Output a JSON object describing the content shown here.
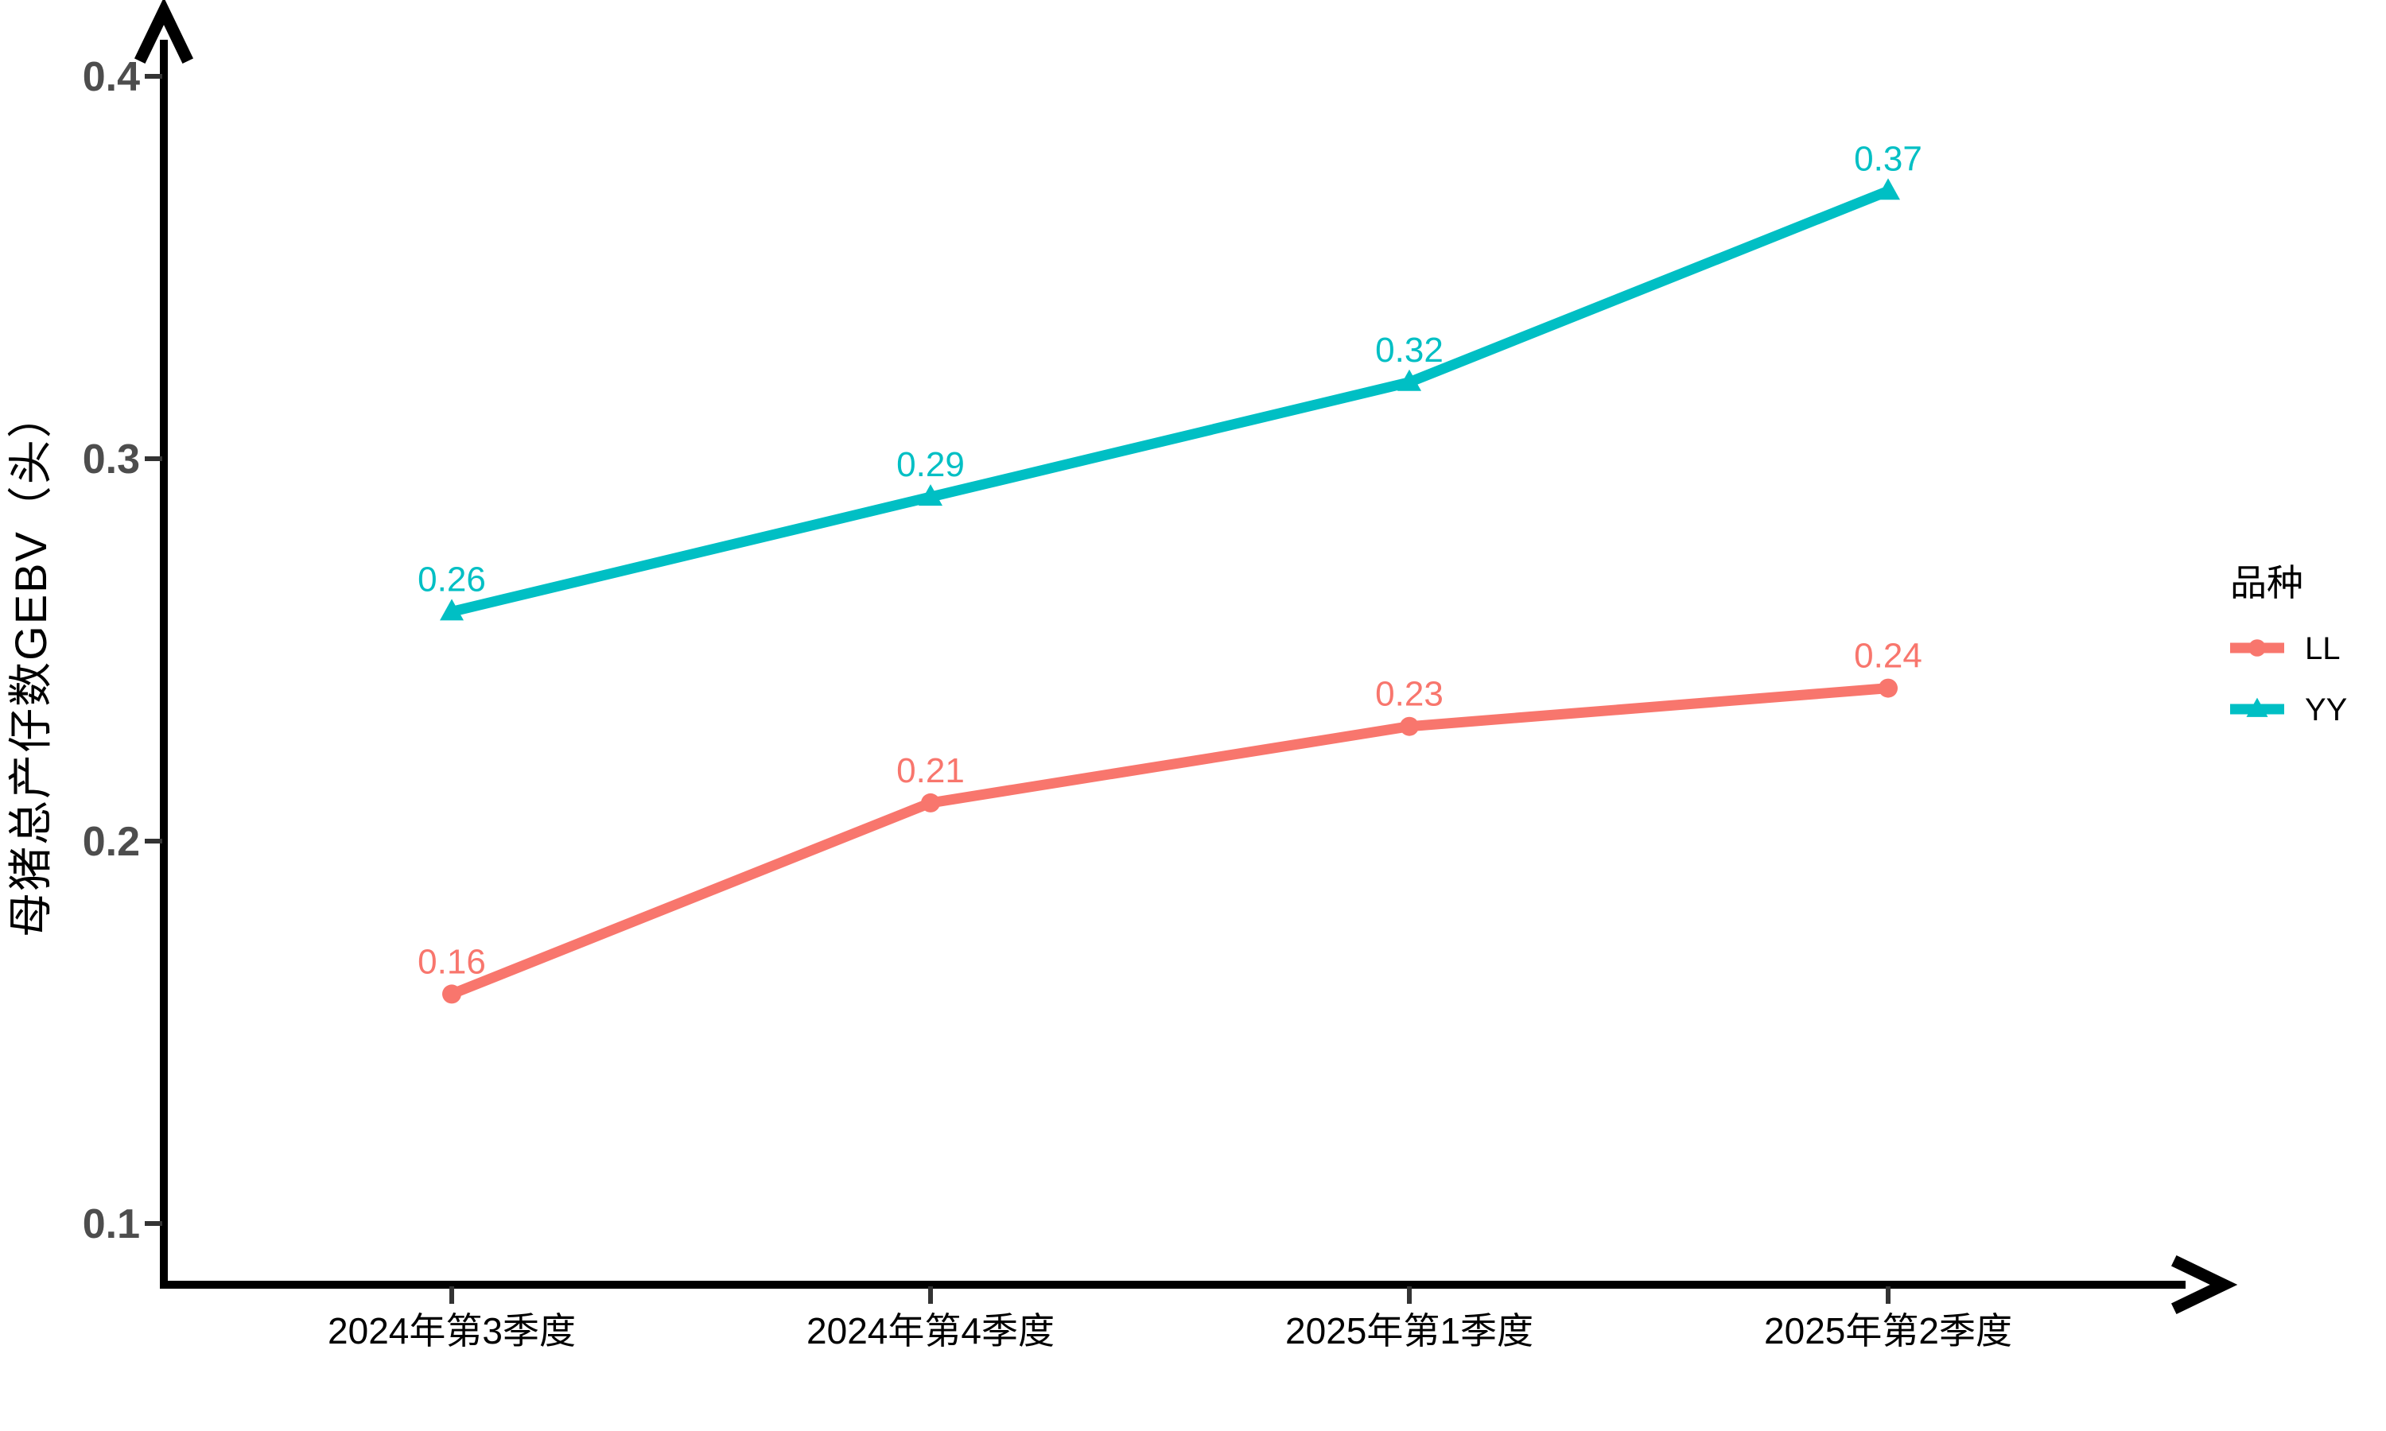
{
  "chart_data": {
    "type": "line",
    "title": "",
    "categories": [
      "2024年第3季度",
      "2024年第4季度",
      "2025年第1季度",
      "2025年第2季度"
    ],
    "series": [
      {
        "name": "LL",
        "values": [
          0.16,
          0.21,
          0.23,
          0.24
        ],
        "color": "#F8766D",
        "marker": "circle"
      },
      {
        "name": "YY",
        "values": [
          0.26,
          0.29,
          0.32,
          0.37
        ],
        "color": "#00BFC4",
        "marker": "triangle"
      }
    ],
    "value_labels": [
      "0.16",
      "0.21",
      "0.23",
      "0.24",
      "0.26",
      "0.29",
      "0.32",
      "0.37"
    ],
    "xlabel": "",
    "ylabel": "母猪总产仔数GEBV（头）",
    "yticks": [
      "0.1",
      "0.2",
      "0.3",
      "0.4"
    ],
    "ylim": [
      0.084,
      0.417
    ],
    "grid": false,
    "legend": {
      "title": "品种",
      "position": "right",
      "entries": [
        "LL",
        "YY"
      ]
    },
    "axis_arrows": true
  },
  "colors": {
    "axis_line": "#000000",
    "tick_mark": "#333333",
    "y_tick_text": "#4d4d4d",
    "x_tick_text": "#000000"
  }
}
